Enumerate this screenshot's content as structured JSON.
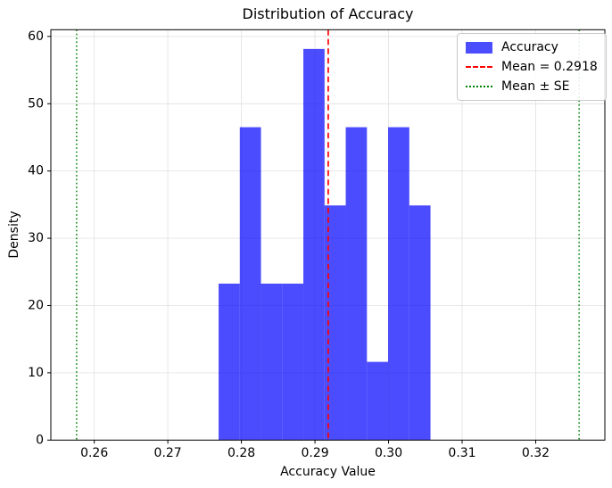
{
  "chart_data": {
    "type": "bar",
    "subtype": "histogram-density",
    "title": "Distribution of Accuracy",
    "xlabel": "Accuracy Value",
    "ylabel": "Density",
    "xlim": [
      0.2541,
      0.3294
    ],
    "ylim": [
      0,
      61
    ],
    "xticks": {
      "values": [
        0.26,
        0.27,
        0.28,
        0.29,
        0.3,
        0.31,
        0.32
      ],
      "labels": [
        "0.26",
        "0.27",
        "0.28",
        "0.29",
        "0.30",
        "0.31",
        "0.32"
      ]
    },
    "yticks": {
      "values": [
        0,
        10,
        20,
        30,
        40,
        50,
        60
      ],
      "labels": [
        "0",
        "10",
        "20",
        "30",
        "40",
        "50",
        "60"
      ]
    },
    "grid": true,
    "histogram": {
      "series_name": "Accuracy",
      "bin_start": 0.2769,
      "bin_width": 0.00288,
      "densities": [
        23.26,
        46.51,
        23.26,
        23.26,
        58.14,
        34.88,
        46.51,
        11.63,
        46.51,
        34.88
      ],
      "counts": [
        2,
        4,
        2,
        2,
        5,
        3,
        4,
        1,
        4,
        3
      ]
    },
    "mean_line": {
      "value": 0.2918,
      "label": "Mean = 0.2918",
      "style": "dashed"
    },
    "se_lines": {
      "values": [
        0.2576,
        0.3259
      ],
      "label": "Mean ± SE",
      "style": "dotted"
    },
    "legend_position": "top-right",
    "legend": {
      "items": [
        {
          "label": "Accuracy",
          "swatch": "bar-patch"
        },
        {
          "label": "Mean = 0.2918",
          "swatch": "dashed-line"
        },
        {
          "label": "Mean ± SE",
          "swatch": "dotted-line"
        }
      ]
    },
    "colors": {
      "bar": "#0000FF",
      "bar_opacity": 0.7,
      "mean": "#FF0000",
      "se": "#008000",
      "grid": "#E4E4E4",
      "spine": "#000000",
      "tick_text": "#000000"
    }
  }
}
